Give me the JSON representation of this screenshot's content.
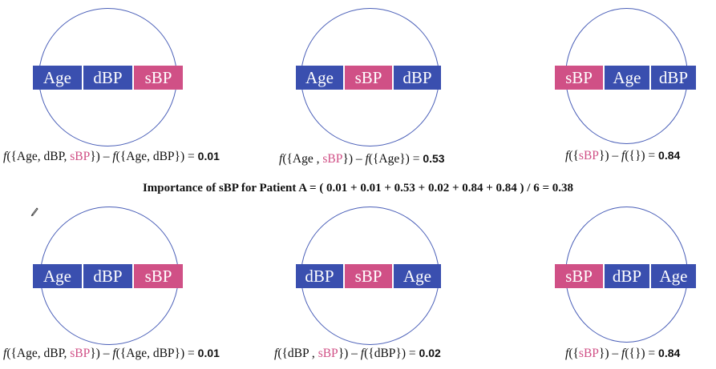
{
  "colors": {
    "feature_blue": "#3a4faf",
    "highlight_pink": "#d05086",
    "circle_stroke": "#4a5fb8"
  },
  "summary": {
    "prefix": "Importance of sBP for Patient A = ",
    "expression": "( 0.01 + 0.01 + 0.53 + 0.02 + 0.84 + 0.84 ) / 6 = 0.38"
  },
  "panels": [
    {
      "boxes": [
        {
          "label": "Age",
          "highlight": false
        },
        {
          "label": "dBP",
          "highlight": false
        },
        {
          "label": "sBP",
          "highlight": true
        }
      ],
      "formula": {
        "left_set_before": "({Age, dBP, ",
        "left_set_target": "sBP",
        "left_set_after": "}) – ",
        "right_set": "({Age, dBP})",
        "equals": " = ",
        "value": "0.01"
      }
    },
    {
      "boxes": [
        {
          "label": "Age",
          "highlight": false
        },
        {
          "label": "sBP",
          "highlight": true
        },
        {
          "label": "dBP",
          "highlight": false
        }
      ],
      "formula": {
        "left_set_before": "({Age , ",
        "left_set_target": "sBP",
        "left_set_after": "}) – ",
        "right_set": "({Age})",
        "equals": " = ",
        "value": "0.53"
      }
    },
    {
      "boxes": [
        {
          "label": "sBP",
          "highlight": true
        },
        {
          "label": "Age",
          "highlight": false
        },
        {
          "label": "dBP",
          "highlight": false
        }
      ],
      "formula": {
        "left_set_before": "({",
        "left_set_target": "sBP",
        "left_set_after": "}) – ",
        "right_set": "({})",
        "equals": " = ",
        "value": "0.84"
      }
    },
    {
      "boxes": [
        {
          "label": "Age",
          "highlight": false
        },
        {
          "label": "dBP",
          "highlight": false
        },
        {
          "label": "sBP",
          "highlight": true
        }
      ],
      "formula": {
        "left_set_before": "({Age, dBP, ",
        "left_set_target": "sBP",
        "left_set_after": "}) – ",
        "right_set": "({Age, dBP})",
        "equals": " = ",
        "value": "0.01"
      }
    },
    {
      "boxes": [
        {
          "label": "dBP",
          "highlight": false
        },
        {
          "label": "sBP",
          "highlight": true
        },
        {
          "label": "Age",
          "highlight": false
        }
      ],
      "formula": {
        "left_set_before": "({dBP , ",
        "left_set_target": "sBP",
        "left_set_after": "}) – ",
        "right_set": "({dBP})",
        "equals": " = ",
        "value": "0.02"
      }
    },
    {
      "boxes": [
        {
          "label": "sBP",
          "highlight": true
        },
        {
          "label": "dBP",
          "highlight": false
        },
        {
          "label": "Age",
          "highlight": false
        }
      ],
      "formula": {
        "left_set_before": "({",
        "left_set_target": "sBP",
        "left_set_after": "}) – ",
        "right_set": "({})",
        "equals": " = ",
        "value": "0.84"
      }
    }
  ],
  "function_symbol": "f"
}
